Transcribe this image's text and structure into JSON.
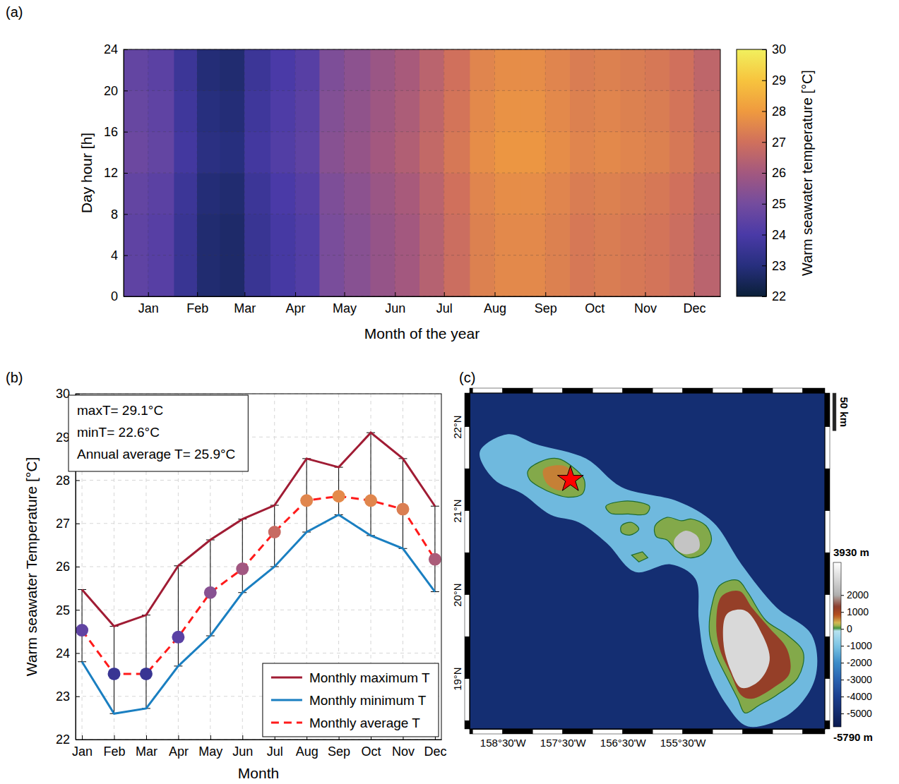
{
  "chart_data": [
    {
      "type": "heatmap",
      "panel": "(a)",
      "xlabel": "Month of the year",
      "ylabel": "Day hour [h]",
      "xlim": [
        0,
        365
      ],
      "ylim": [
        0,
        24
      ],
      "xticks": [
        {
          "value": 15,
          "label": "Jan"
        },
        {
          "value": 45,
          "label": "Feb"
        },
        {
          "value": 74,
          "label": "Mar"
        },
        {
          "value": 105,
          "label": "Apr"
        },
        {
          "value": 135,
          "label": "May"
        },
        {
          "value": 166,
          "label": "Jun"
        },
        {
          "value": 196,
          "label": "Jul"
        },
        {
          "value": 227,
          "label": "Aug"
        },
        {
          "value": 258,
          "label": "Sep"
        },
        {
          "value": 288,
          "label": "Oct"
        },
        {
          "value": 319,
          "label": "Nov"
        },
        {
          "value": 349,
          "label": "Dec"
        }
      ],
      "yticks": [
        0,
        4,
        8,
        12,
        16,
        20,
        24
      ],
      "grid": true,
      "x_bins": [
        0,
        15,
        31,
        45,
        59,
        74,
        90,
        105,
        120,
        135,
        151,
        166,
        181,
        196,
        212,
        227,
        243,
        258,
        273,
        288,
        304,
        319,
        334,
        349,
        365
      ],
      "y_bins": [
        0,
        4,
        8,
        12,
        16,
        20,
        24
      ],
      "values": [
        [
          24.5,
          24.3,
          23.5,
          22.8,
          22.7,
          23.5,
          23.9,
          24.2,
          25.1,
          25.4,
          25.7,
          26.0,
          26.4,
          26.9,
          27.4,
          27.6,
          27.6,
          27.4,
          27.2,
          27.3,
          27.2,
          27.1,
          26.9,
          26.5
        ],
        [
          24.5,
          24.3,
          23.5,
          22.8,
          22.7,
          23.5,
          23.9,
          24.2,
          25.1,
          25.4,
          25.7,
          26.0,
          26.4,
          26.9,
          27.4,
          27.6,
          27.6,
          27.4,
          27.2,
          27.3,
          27.2,
          27.1,
          26.9,
          26.5
        ],
        [
          24.6,
          24.4,
          23.6,
          22.9,
          22.8,
          23.6,
          24.0,
          24.3,
          25.2,
          25.5,
          25.8,
          26.1,
          26.5,
          27.0,
          27.5,
          27.7,
          27.7,
          27.5,
          27.3,
          27.4,
          27.3,
          27.2,
          27.0,
          26.6
        ],
        [
          24.8,
          24.6,
          23.8,
          23.1,
          23.0,
          23.8,
          24.2,
          24.5,
          25.4,
          25.7,
          26.0,
          26.3,
          26.7,
          27.2,
          27.7,
          27.9,
          27.9,
          27.7,
          27.5,
          27.6,
          27.5,
          27.4,
          27.2,
          26.8
        ],
        [
          24.7,
          24.5,
          23.7,
          23.0,
          22.9,
          23.7,
          24.1,
          24.4,
          25.3,
          25.6,
          25.9,
          26.2,
          26.6,
          27.1,
          27.6,
          27.8,
          27.8,
          27.6,
          27.4,
          27.5,
          27.4,
          27.3,
          27.1,
          26.7
        ],
        [
          24.6,
          24.4,
          23.6,
          22.9,
          22.8,
          23.6,
          24.0,
          24.3,
          25.2,
          25.5,
          25.8,
          26.1,
          26.5,
          27.0,
          27.5,
          27.7,
          27.7,
          27.5,
          27.3,
          27.4,
          27.3,
          27.2,
          27.0,
          26.6
        ]
      ],
      "colorbar": {
        "label": "Warm seawater temperature [°C]",
        "range": [
          22,
          30
        ],
        "ticks": [
          22,
          23,
          24,
          25,
          26,
          27,
          28,
          29,
          30
        ]
      }
    },
    {
      "type": "line",
      "panel": "(b)",
      "xlabel": "Month",
      "ylabel": "Warm seawater Temperature [°C]",
      "categories": [
        "Jan",
        "Feb",
        "Mar",
        "Apr",
        "May",
        "Jun",
        "Jul",
        "Aug",
        "Sep",
        "Oct",
        "Nov",
        "Dec"
      ],
      "ylim": [
        22,
        30
      ],
      "yticks": [
        22,
        23,
        24,
        25,
        26,
        27,
        28,
        29,
        30
      ],
      "grid": true,
      "legend": "lower right",
      "annotations": [
        "maxT= 29.1°C",
        "minT= 22.6°C",
        "Annual average T= 25.9°C"
      ],
      "series": [
        {
          "name": "Monthly maximum T",
          "color": "#a01c34",
          "line_style": "solid",
          "values": [
            25.47,
            24.62,
            24.88,
            26.02,
            26.62,
            27.1,
            27.42,
            28.5,
            28.3,
            29.1,
            28.5,
            27.4
          ]
        },
        {
          "name": "Monthly minimum T",
          "color": "#1a7fc1",
          "line_style": "solid",
          "values": [
            23.8,
            22.6,
            22.72,
            23.7,
            24.4,
            25.4,
            26.0,
            26.8,
            27.2,
            26.72,
            26.42,
            25.42
          ]
        },
        {
          "name": "Monthly average T",
          "color": "#ff1a1a",
          "line_style": "dashed",
          "marker": "circle",
          "values": [
            24.53,
            23.52,
            23.52,
            24.37,
            25.4,
            25.95,
            26.8,
            27.53,
            27.63,
            27.53,
            27.33,
            26.17
          ]
        }
      ]
    },
    {
      "type": "map",
      "panel": "(c)",
      "xlim": [
        -159.05,
        -153.13
      ],
      "ylim": [
        18.4,
        22.4
      ],
      "xticks": [
        {
          "value": -158.5,
          "label": "158°30'W"
        },
        {
          "value": -157.5,
          "label": "157°30'W"
        },
        {
          "value": -156.5,
          "label": "156°30'W"
        },
        {
          "value": -155.5,
          "label": "155°30'W"
        }
      ],
      "yticks": [
        {
          "value": 19,
          "label": "19°N"
        },
        {
          "value": 20,
          "label": "20°N"
        },
        {
          "value": 21,
          "label": "21°N"
        },
        {
          "value": 22,
          "label": "22°N"
        }
      ],
      "features": [
        {
          "elevation": -4800,
          "polygon": [
            [
              -159.05,
              18.4
            ],
            [
              -153.13,
              18.4
            ],
            [
              -153.13,
              22.4
            ],
            [
              -159.05,
              22.4
            ]
          ]
        },
        {
          "elevation": -1200,
          "polygon": [
            [
              -158.88,
              21.7
            ],
            [
              -158.41,
              21.91
            ],
            [
              -157.94,
              21.79
            ],
            [
              -157.11,
              21.62
            ],
            [
              -156.52,
              21.28
            ],
            [
              -155.58,
              21.11
            ],
            [
              -154.99,
              20.86
            ],
            [
              -154.52,
              20.36
            ],
            [
              -153.94,
              19.85
            ],
            [
              -153.35,
              19.52
            ],
            [
              -153.29,
              19.01
            ],
            [
              -153.7,
              18.59
            ],
            [
              -154.41,
              18.43
            ],
            [
              -154.76,
              18.68
            ],
            [
              -155.11,
              19.18
            ],
            [
              -155.23,
              19.69
            ],
            [
              -155.29,
              20.19
            ],
            [
              -155.7,
              20.36
            ],
            [
              -156.29,
              20.27
            ],
            [
              -156.76,
              20.61
            ],
            [
              -157.23,
              20.86
            ],
            [
              -157.7,
              20.95
            ],
            [
              -158.17,
              21.2
            ],
            [
              -158.64,
              21.37
            ]
          ]
        },
        {
          "elevation": 150,
          "polygon": [
            [
              -158.08,
              21.47
            ],
            [
              -157.88,
              21.58
            ],
            [
              -157.58,
              21.62
            ],
            [
              -157.35,
              21.53
            ],
            [
              -157.14,
              21.37
            ],
            [
              -157.17,
              21.2
            ],
            [
              -157.41,
              21.16
            ],
            [
              -157.64,
              21.2
            ],
            [
              -157.88,
              21.28
            ],
            [
              -158.05,
              21.37
            ]
          ]
        },
        {
          "elevation": 600,
          "polygon": [
            [
              -157.82,
              21.49
            ],
            [
              -157.46,
              21.53
            ],
            [
              -157.29,
              21.37
            ],
            [
              -157.52,
              21.24
            ],
            [
              -157.76,
              21.32
            ]
          ]
        },
        {
          "elevation": 150,
          "polygon": [
            [
              -156.78,
              21.05
            ],
            [
              -156.52,
              21.11
            ],
            [
              -156.23,
              21.1
            ],
            [
              -156.05,
              21.05
            ],
            [
              -156.11,
              20.96
            ],
            [
              -156.41,
              20.96
            ],
            [
              -156.7,
              20.97
            ]
          ]
        },
        {
          "elevation": 150,
          "polygon": [
            [
              -156.52,
              20.82
            ],
            [
              -156.35,
              20.86
            ],
            [
              -156.23,
              20.78
            ],
            [
              -156.37,
              20.71
            ],
            [
              -156.52,
              20.74
            ]
          ]
        },
        {
          "elevation": 150,
          "polygon": [
            [
              -156.35,
              20.47
            ],
            [
              -156.17,
              20.51
            ],
            [
              -156.08,
              20.44
            ],
            [
              -156.23,
              20.39
            ]
          ]
        },
        {
          "elevation": 150,
          "polygon": [
            [
              -155.96,
              20.82
            ],
            [
              -155.76,
              20.92
            ],
            [
              -155.52,
              20.88
            ],
            [
              -155.35,
              20.9
            ],
            [
              -155.11,
              20.82
            ],
            [
              -155.02,
              20.65
            ],
            [
              -155.17,
              20.48
            ],
            [
              -155.41,
              20.44
            ],
            [
              -155.61,
              20.53
            ],
            [
              -155.76,
              20.65
            ],
            [
              -155.94,
              20.69
            ]
          ]
        },
        {
          "elevation": 2500,
          "polygon": [
            [
              -155.64,
              20.65
            ],
            [
              -155.46,
              20.76
            ],
            [
              -155.25,
              20.69
            ],
            [
              -155.23,
              20.54
            ],
            [
              -155.44,
              20.48
            ],
            [
              -155.61,
              20.54
            ]
          ]
        },
        {
          "elevation": 150,
          "polygon": [
            [
              -154.88,
              20.11
            ],
            [
              -154.58,
              20.17
            ],
            [
              -154.41,
              20.02
            ],
            [
              -154.11,
              19.69
            ],
            [
              -153.76,
              19.52
            ],
            [
              -153.49,
              19.31
            ],
            [
              -153.58,
              19.01
            ],
            [
              -153.94,
              18.8
            ],
            [
              -154.23,
              18.68
            ],
            [
              -154.46,
              18.59
            ],
            [
              -154.58,
              18.76
            ],
            [
              -154.76,
              19.01
            ],
            [
              -154.94,
              19.27
            ],
            [
              -155.05,
              19.52
            ],
            [
              -155.02,
              19.85
            ]
          ]
        },
        {
          "elevation": 1200,
          "polygon": [
            [
              -154.85,
              19.98
            ],
            [
              -154.55,
              20.04
            ],
            [
              -154.35,
              19.85
            ],
            [
              -154.05,
              19.6
            ],
            [
              -153.76,
              19.35
            ],
            [
              -153.72,
              19.06
            ],
            [
              -153.99,
              18.89
            ],
            [
              -154.35,
              18.76
            ],
            [
              -154.52,
              18.8
            ],
            [
              -154.7,
              19.06
            ],
            [
              -154.88,
              19.35
            ],
            [
              -154.94,
              19.64
            ]
          ]
        },
        {
          "elevation": 3000,
          "polygon": [
            [
              -154.76,
              19.77
            ],
            [
              -154.46,
              19.81
            ],
            [
              -154.17,
              19.52
            ],
            [
              -154.05,
              19.22
            ],
            [
              -154.23,
              18.97
            ],
            [
              -154.52,
              18.89
            ],
            [
              -154.7,
              19.1
            ],
            [
              -154.82,
              19.43
            ]
          ]
        }
      ],
      "points": {
        "x": [
          -157.37
        ],
        "y": [
          21.37
        ],
        "marker": "star",
        "color": "#ff0000"
      },
      "colorbar": {
        "range": [
          -5790,
          3930
        ],
        "range_labels": [
          "-5790 m",
          "3930 m"
        ],
        "ticks": [
          2000,
          1000,
          0,
          -1000,
          -2000,
          -3000,
          -4000,
          -5000
        ]
      },
      "scale_bar": {
        "label": "50 km",
        "km": 50
      }
    }
  ]
}
